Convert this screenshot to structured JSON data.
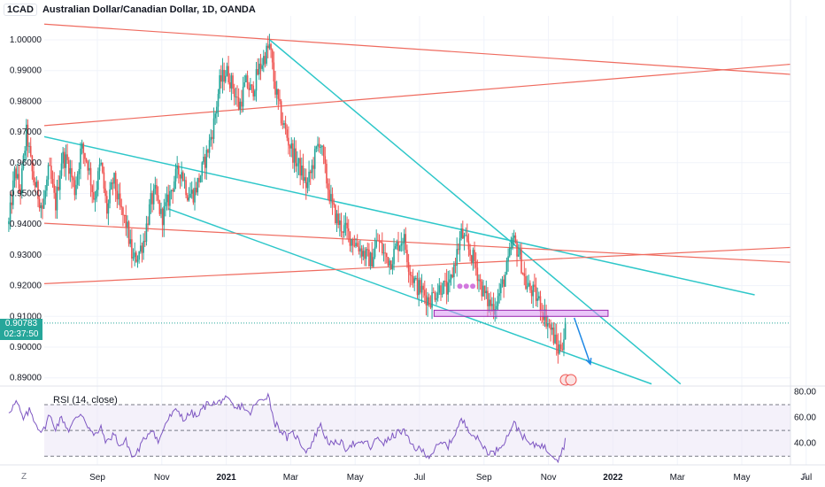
{
  "header": {
    "symbol_chip": "1CAD",
    "title": "Australian Dollar/Canadian Dollar, 1D, OANDA"
  },
  "badges": {
    "last_price": "0.90783",
    "countdown": "02:37:50"
  },
  "rsi": {
    "label": "RSI (14, close)",
    "levels": [
      30,
      50,
      70
    ],
    "ticks": [
      "80.00",
      "60.00",
      "40.00"
    ]
  },
  "bottom": {
    "left_button": "Z",
    "right_button": "A"
  },
  "colors": {
    "up": "#26a69a",
    "down": "#ef5350",
    "cyan_lines": "#2ec7c9",
    "red_lines": "#ef6b5f",
    "rsi_line": "#7e57c2",
    "rsi_band": "#ede7f6",
    "zone": "#d895f2"
  },
  "chart_data": {
    "type": "candlestick",
    "title": "Australian Dollar/Canadian Dollar, 1D, OANDA",
    "y_axis": {
      "ticks": [
        1.0,
        0.99,
        0.98,
        0.97,
        0.96,
        0.95,
        0.94,
        0.93,
        0.92,
        0.91,
        0.9,
        0.89
      ],
      "tick_labels": [
        "1.00000",
        "0.99000",
        "0.98000",
        "0.97000",
        "0.96000",
        "0.95000",
        "0.94000",
        "0.93000",
        "0.92000",
        "0.91000",
        "0.90000",
        "0.89000"
      ]
    },
    "x_axis": {
      "labels": [
        "Sep",
        "Nov",
        "2021",
        "Mar",
        "May",
        "Jul",
        "Sep",
        "Nov",
        "2022",
        "Mar",
        "May",
        "Jul"
      ],
      "label_months": [
        2.0,
        4.0,
        6.0,
        8.0,
        10.0,
        12.0,
        14.0,
        16.0,
        18.0,
        20.0,
        22.0,
        24.0
      ]
    },
    "last_price": 0.90783,
    "price_path": [
      [
        -0.75,
        0.94
      ],
      [
        -0.55,
        0.958
      ],
      [
        -0.4,
        0.95
      ],
      [
        -0.2,
        0.97
      ],
      [
        0.0,
        0.955
      ],
      [
        0.3,
        0.945
      ],
      [
        0.5,
        0.958
      ],
      [
        0.7,
        0.946
      ],
      [
        0.9,
        0.962
      ],
      [
        1.1,
        0.96
      ],
      [
        1.3,
        0.951
      ],
      [
        1.5,
        0.965
      ],
      [
        1.7,
        0.96
      ],
      [
        1.9,
        0.948
      ],
      [
        2.1,
        0.96
      ],
      [
        2.3,
        0.944
      ],
      [
        2.5,
        0.955
      ],
      [
        2.7,
        0.945
      ],
      [
        2.9,
        0.94
      ],
      [
        3.1,
        0.928
      ],
      [
        3.25,
        0.93
      ],
      [
        3.45,
        0.935
      ],
      [
        3.65,
        0.947
      ],
      [
        3.8,
        0.95
      ],
      [
        4.0,
        0.942
      ],
      [
        4.2,
        0.948
      ],
      [
        4.4,
        0.955
      ],
      [
        4.6,
        0.958
      ],
      [
        4.8,
        0.95
      ],
      [
        5.0,
        0.95
      ],
      [
        5.2,
        0.956
      ],
      [
        5.4,
        0.963
      ],
      [
        5.6,
        0.972
      ],
      [
        5.8,
        0.986
      ],
      [
        6.0,
        0.99
      ],
      [
        6.2,
        0.985
      ],
      [
        6.4,
        0.978
      ],
      [
        6.6,
        0.986
      ],
      [
        6.8,
        0.983
      ],
      [
        7.0,
        0.99
      ],
      [
        7.2,
        0.995
      ],
      [
        7.35,
        0.998
      ],
      [
        7.5,
        0.985
      ],
      [
        7.7,
        0.975
      ],
      [
        7.9,
        0.968
      ],
      [
        8.1,
        0.962
      ],
      [
        8.3,
        0.958
      ],
      [
        8.5,
        0.952
      ],
      [
        8.7,
        0.96
      ],
      [
        8.9,
        0.968
      ],
      [
        9.1,
        0.955
      ],
      [
        9.3,
        0.945
      ],
      [
        9.5,
        0.94
      ],
      [
        9.7,
        0.938
      ],
      [
        9.9,
        0.935
      ],
      [
        10.1,
        0.933
      ],
      [
        10.3,
        0.93
      ],
      [
        10.5,
        0.928
      ],
      [
        10.7,
        0.935
      ],
      [
        10.9,
        0.93
      ],
      [
        11.1,
        0.928
      ],
      [
        11.3,
        0.933
      ],
      [
        11.5,
        0.936
      ],
      [
        11.7,
        0.925
      ],
      [
        11.9,
        0.92
      ],
      [
        12.1,
        0.918
      ],
      [
        12.3,
        0.915
      ],
      [
        12.5,
        0.918
      ],
      [
        12.7,
        0.92
      ],
      [
        12.9,
        0.918
      ],
      [
        13.1,
        0.928
      ],
      [
        13.3,
        0.937
      ],
      [
        13.5,
        0.932
      ],
      [
        13.7,
        0.928
      ],
      [
        13.9,
        0.92
      ],
      [
        14.1,
        0.915
      ],
      [
        14.3,
        0.913
      ],
      [
        14.5,
        0.918
      ],
      [
        14.7,
        0.925
      ],
      [
        14.9,
        0.935
      ],
      [
        15.1,
        0.93
      ],
      [
        15.3,
        0.92
      ],
      [
        15.5,
        0.918
      ],
      [
        15.7,
        0.915
      ],
      [
        15.9,
        0.91
      ],
      [
        16.1,
        0.905
      ],
      [
        16.3,
        0.899
      ],
      [
        16.45,
        0.902
      ],
      [
        16.55,
        0.9078
      ]
    ],
    "annotations": {
      "trendlines": [
        {
          "color": "cyan",
          "from": [
            7.35,
            1.0
          ],
          "to": [
            20.1,
            0.888
          ]
        },
        {
          "color": "cyan",
          "from": [
            -0.3,
            0.97
          ],
          "to": [
            22.4,
            0.917
          ]
        },
        {
          "color": "cyan",
          "from": [
            4.2,
            0.945
          ],
          "to": [
            19.2,
            0.888
          ]
        },
        {
          "color": "red",
          "from": [
            -0.9,
            1.006
          ],
          "to": [
            24.6,
            0.988
          ]
        },
        {
          "color": "red",
          "from": [
            -0.9,
            0.971
          ],
          "to": [
            24.6,
            0.993
          ]
        },
        {
          "color": "red",
          "from": [
            -0.9,
            0.941
          ],
          "to": [
            24.6,
            0.927
          ]
        },
        {
          "color": "red",
          "from": [
            -0.9,
            0.92
          ],
          "to": [
            24.6,
            0.933
          ]
        }
      ],
      "zone": {
        "x_from": 12.45,
        "x_to": 17.85,
        "y_from": 0.91,
        "y_to": 0.912
      },
      "arrow": {
        "from": [
          16.8,
          0.9095
        ],
        "to": [
          17.3,
          0.8945
        ]
      }
    },
    "rsi": {
      "name": "RSI (14, close)",
      "range": [
        20,
        85
      ],
      "levels": [
        30,
        50,
        70
      ],
      "path": [
        [
          -0.75,
          65
        ],
        [
          -0.5,
          72
        ],
        [
          -0.3,
          58
        ],
        [
          -0.1,
          66
        ],
        [
          0.1,
          55
        ],
        [
          0.3,
          48
        ],
        [
          0.5,
          62
        ],
        [
          0.7,
          52
        ],
        [
          0.9,
          60
        ],
        [
          1.1,
          50
        ],
        [
          1.3,
          58
        ],
        [
          1.5,
          64
        ],
        [
          1.7,
          54
        ],
        [
          1.9,
          45
        ],
        [
          2.1,
          52
        ],
        [
          2.3,
          40
        ],
        [
          2.5,
          48
        ],
        [
          2.7,
          38
        ],
        [
          2.9,
          42
        ],
        [
          3.1,
          28
        ],
        [
          3.3,
          36
        ],
        [
          3.5,
          45
        ],
        [
          3.7,
          52
        ],
        [
          3.9,
          40
        ],
        [
          4.1,
          55
        ],
        [
          4.3,
          62
        ],
        [
          4.5,
          66
        ],
        [
          4.7,
          58
        ],
        [
          4.9,
          64
        ],
        [
          5.1,
          60
        ],
        [
          5.3,
          68
        ],
        [
          5.5,
          72
        ],
        [
          5.7,
          70
        ],
        [
          5.9,
          75
        ],
        [
          6.1,
          72
        ],
        [
          6.3,
          66
        ],
        [
          6.5,
          70
        ],
        [
          6.7,
          62
        ],
        [
          6.9,
          70
        ],
        [
          7.1,
          74
        ],
        [
          7.3,
          78
        ],
        [
          7.5,
          56
        ],
        [
          7.7,
          50
        ],
        [
          7.9,
          44
        ],
        [
          8.1,
          48
        ],
        [
          8.3,
          40
        ],
        [
          8.5,
          34
        ],
        [
          8.7,
          42
        ],
        [
          8.9,
          55
        ],
        [
          9.1,
          44
        ],
        [
          9.3,
          38
        ],
        [
          9.5,
          42
        ],
        [
          9.7,
          36
        ],
        [
          9.9,
          40
        ],
        [
          10.1,
          38
        ],
        [
          10.3,
          42
        ],
        [
          10.5,
          36
        ],
        [
          10.7,
          45
        ],
        [
          10.9,
          40
        ],
        [
          11.1,
          44
        ],
        [
          11.3,
          48
        ],
        [
          11.5,
          50
        ],
        [
          11.7,
          40
        ],
        [
          11.9,
          36
        ],
        [
          12.1,
          34
        ],
        [
          12.3,
          30
        ],
        [
          12.5,
          36
        ],
        [
          12.7,
          40
        ],
        [
          12.9,
          38
        ],
        [
          13.1,
          48
        ],
        [
          13.3,
          58
        ],
        [
          13.5,
          52
        ],
        [
          13.7,
          46
        ],
        [
          13.9,
          40
        ],
        [
          14.1,
          34
        ],
        [
          14.3,
          32
        ],
        [
          14.5,
          38
        ],
        [
          14.7,
          44
        ],
        [
          14.9,
          56
        ],
        [
          15.1,
          50
        ],
        [
          15.3,
          42
        ],
        [
          15.5,
          38
        ],
        [
          15.7,
          40
        ],
        [
          15.9,
          36
        ],
        [
          16.1,
          32
        ],
        [
          16.3,
          28
        ],
        [
          16.45,
          36
        ],
        [
          16.55,
          44
        ]
      ]
    }
  }
}
